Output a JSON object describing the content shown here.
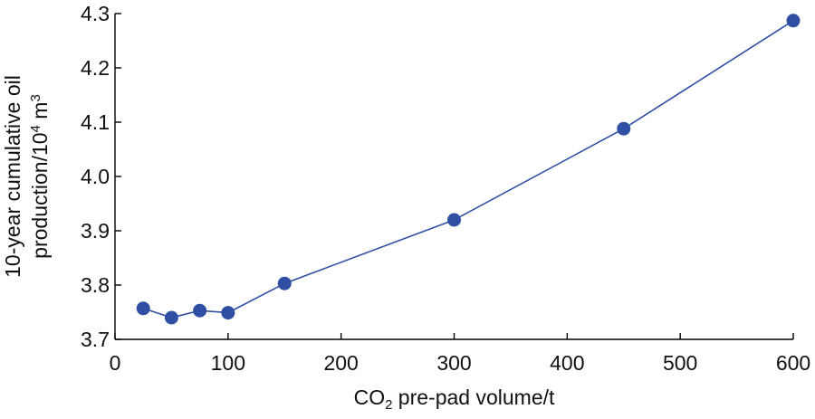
{
  "chart_data": {
    "type": "line",
    "title": "",
    "xlabel": {
      "prefix": "CO",
      "sub": "2",
      "suffix": " pre-pad volume/t"
    },
    "ylabel": {
      "line1": "10-year cumulative oil",
      "line2_prefix": "production/10",
      "line2_sup1": "4",
      "line2_mid": " m",
      "line2_sup2": "3"
    },
    "xlim": [
      0,
      600
    ],
    "ylim": [
      3.7,
      4.3
    ],
    "xticks": [
      0,
      100,
      200,
      300,
      400,
      500,
      600
    ],
    "yticks": [
      3.7,
      3.8,
      3.9,
      4.0,
      4.1,
      4.2,
      4.3
    ],
    "ytick_labels": [
      "3.7",
      "3.8",
      "3.9",
      "4.0",
      "4.1",
      "4.2",
      "4.3"
    ],
    "grid": false,
    "series": [
      {
        "color": "#2e4fa3",
        "x": [
          25,
          50,
          75,
          100,
          150,
          300,
          450,
          600
        ],
        "y": [
          3.757,
          3.74,
          3.753,
          3.749,
          3.803,
          3.92,
          4.088,
          4.287
        ]
      }
    ]
  }
}
